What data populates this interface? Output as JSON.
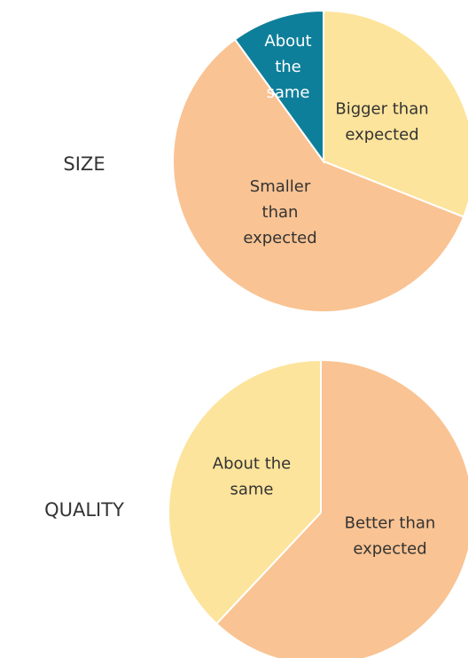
{
  "chart_data": [
    {
      "type": "pie",
      "title": "SIZE",
      "categories": [
        "Bigger than expected",
        "Smaller than expected",
        "About the same"
      ],
      "values": [
        31,
        59,
        10
      ],
      "colors": [
        "#fde49c",
        "#f9c393",
        "#0e7f9a"
      ],
      "label_colors": [
        "#333333",
        "#333333",
        "#ffffff"
      ]
    },
    {
      "type": "pie",
      "title": "QUALITY",
      "categories": [
        "Better than expected",
        "About the same"
      ],
      "values": [
        62,
        38
      ],
      "colors": [
        "#f9c393",
        "#fde49c"
      ],
      "label_colors": [
        "#333333",
        "#333333"
      ]
    }
  ]
}
